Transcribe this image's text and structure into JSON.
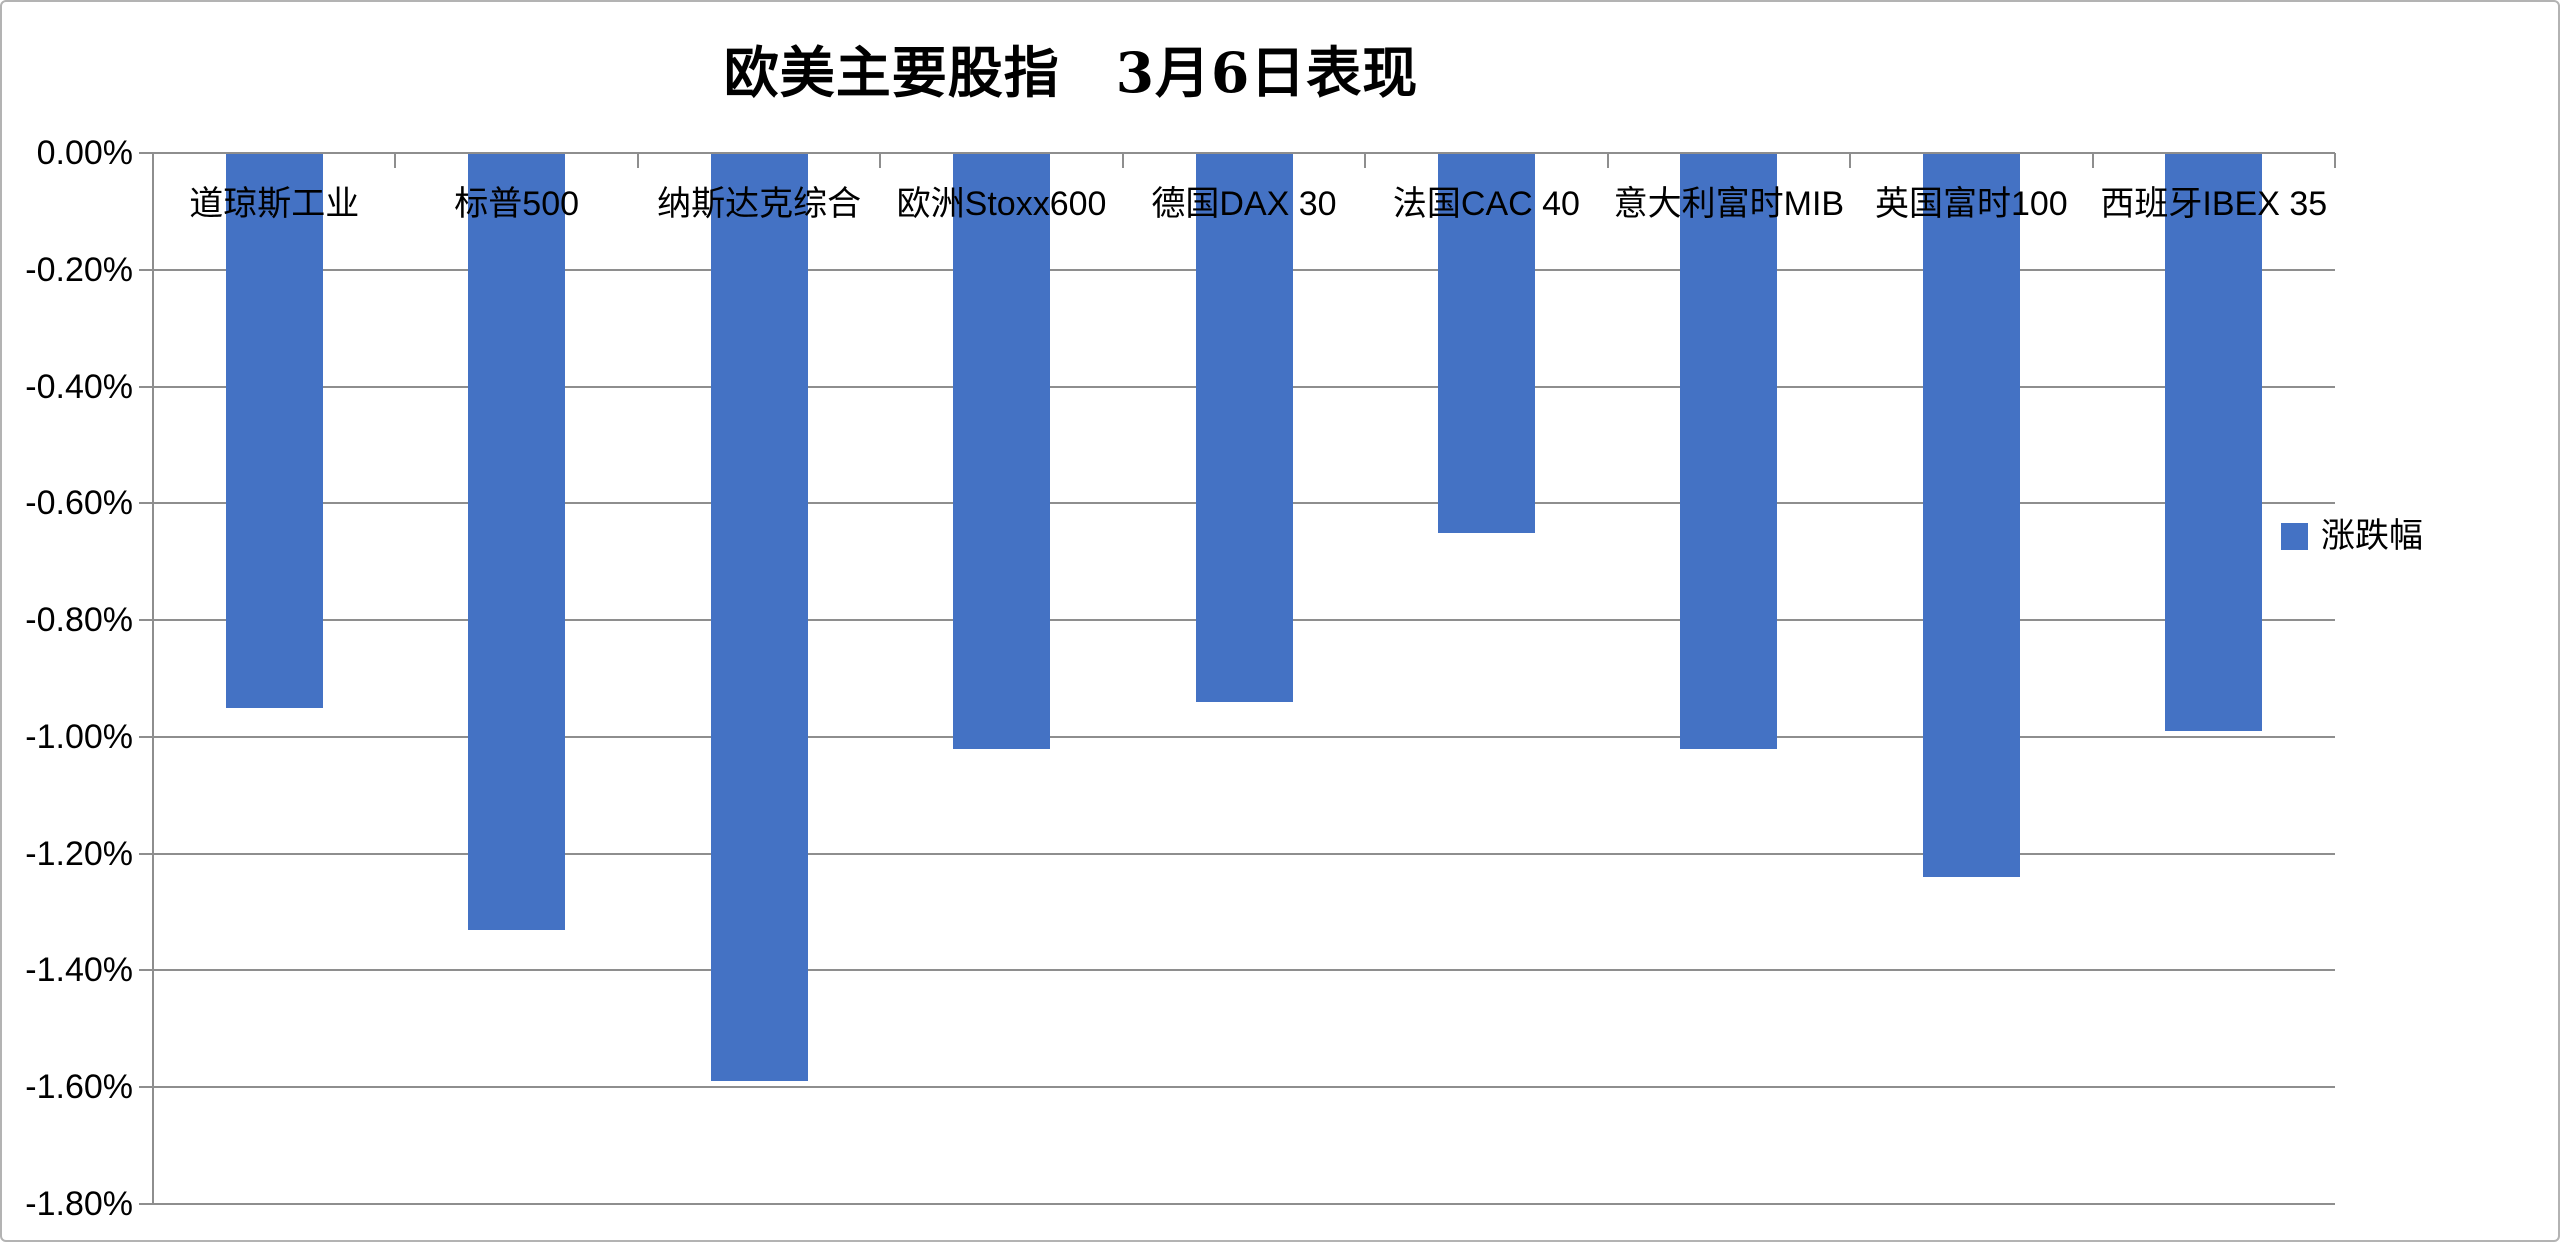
{
  "title": "欧美主要股指　3月6日表现",
  "legend": {
    "label": "涨跌幅",
    "color": "#4472c4"
  },
  "colors": {
    "bar": "#4472c4",
    "gridline": "#8e8e8e",
    "axis": "#8e8e8e",
    "canvas_border": "#b3b3b3",
    "text": "#000000"
  },
  "chart_data": {
    "type": "bar",
    "title": "欧美主要股指　3月6日表现",
    "categories": [
      "道琼斯工业",
      "标普500",
      "纳斯达克综合",
      "欧洲Stoxx600",
      "德国DAX 30",
      "法国CAC 40",
      "意大利富时MIB",
      "英国富时100",
      "西班牙IBEX 35"
    ],
    "series": [
      {
        "name": "涨跌幅",
        "values": [
          -0.95,
          -1.33,
          -1.59,
          -1.02,
          -0.94,
          -0.65,
          -1.02,
          -1.24,
          -0.99
        ]
      }
    ],
    "value_unit": "%",
    "ylim": [
      -1.8,
      0
    ],
    "ytick_step": 0.2,
    "ytick_labels": [
      "0.00%",
      "-0.20%",
      "-0.40%",
      "-0.60%",
      "-0.80%",
      "-1.00%",
      "-1.20%",
      "-1.40%",
      "-1.60%",
      "-1.80%"
    ],
    "grid": true,
    "legend_position": "right",
    "bar_color": "#4472c4",
    "category_labels_position": "top"
  }
}
